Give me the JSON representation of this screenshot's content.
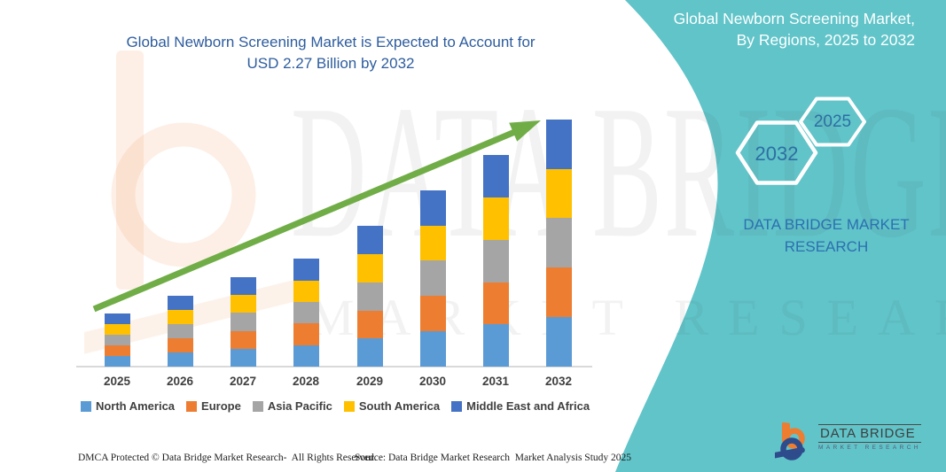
{
  "main_title": {
    "line1": "Global Newborn Screening Market is Expected to Account for",
    "line2": "USD 2.27 Billion by 2032"
  },
  "side_panel": {
    "title_line1": "Global Newborn Screening Market,",
    "title_line2": "By Regions, 2025 to 2032",
    "hexagon_years": {
      "back": "2032",
      "front": "2025"
    },
    "brand_line1": "DATA BRIDGE MARKET",
    "brand_line2": "RESEARCH",
    "accent_color": "#60C4C9"
  },
  "watermark": {
    "row1": "DATA BRIDGE",
    "row2": "MARKET RESEARCH"
  },
  "chart_data": {
    "type": "bar",
    "stacked": true,
    "unit": "USD Billion",
    "title": "Global Newborn Screening Market is Expected to Account for USD 2.27 Billion by 2032",
    "xlabel": "",
    "ylabel": "",
    "y_axis_visible": false,
    "grid": false,
    "legend_position": "bottom",
    "categories": [
      "2025",
      "2026",
      "2027",
      "2028",
      "2029",
      "2030",
      "2031",
      "2032"
    ],
    "totals_usd_billion": [
      0.49,
      0.65,
      0.82,
      0.99,
      1.29,
      1.62,
      1.94,
      2.27
    ],
    "series": [
      {
        "name": "North America",
        "color": "#5B9BD5",
        "values": [
          0.098,
          0.13,
          0.164,
          0.198,
          0.258,
          0.324,
          0.388,
          0.454
        ]
      },
      {
        "name": "Europe",
        "color": "#ED7D31",
        "values": [
          0.098,
          0.13,
          0.164,
          0.198,
          0.258,
          0.324,
          0.388,
          0.454
        ]
      },
      {
        "name": "Asia Pacific",
        "color": "#A5A5A5",
        "values": [
          0.098,
          0.13,
          0.164,
          0.198,
          0.258,
          0.324,
          0.388,
          0.454
        ]
      },
      {
        "name": "South America",
        "color": "#FFC000",
        "values": [
          0.098,
          0.13,
          0.164,
          0.198,
          0.258,
          0.324,
          0.388,
          0.454
        ]
      },
      {
        "name": "Middle East and Africa",
        "color": "#4472C4",
        "values": [
          0.098,
          0.13,
          0.164,
          0.198,
          0.258,
          0.324,
          0.388,
          0.454
        ]
      }
    ],
    "trend_arrow_color": "#70AD47"
  },
  "footer": {
    "left": "DMCA Protected © Data Bridge Market Research-  All Rights Reserved.",
    "right": "Source: Data Bridge Market Research  Market Analysis Study 2025"
  },
  "logo": {
    "line1": "DATA BRIDGE",
    "line2": "MARKET RESEARCH"
  }
}
